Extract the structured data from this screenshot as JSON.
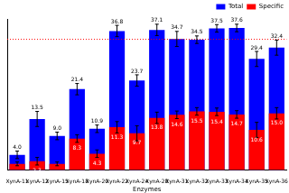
{
  "chart_data": {
    "type": "bar",
    "x_label": "Enzymes",
    "categories": [
      "XynA-11",
      "XynA-12",
      "XynA-15",
      "XynA-18",
      "XynA-20",
      "XynA-22",
      "XynA-24",
      "XynA-28",
      "XynA-31",
      "XynA-32",
      "XynA-33",
      "XynA-34",
      "XynA-35",
      "XynA-36"
    ],
    "series": [
      {
        "name": "Total",
        "color": "#0000ff",
        "values": [
          4.0,
          13.5,
          9.0,
          21.4,
          10.9,
          36.8,
          23.7,
          37.1,
          34.7,
          34.5,
          37.5,
          37.6,
          29.4,
          32.4
        ],
        "errors": [
          1.0,
          2.0,
          1.0,
          1.5,
          1.0,
          1.5,
          1.5,
          1.5,
          2.0,
          1.0,
          1.0,
          1.0,
          2.0,
          2.0
        ]
      },
      {
        "name": "Specific",
        "color": "#ff0000",
        "values": [
          1.6,
          2.3,
          1.6,
          8.3,
          4.3,
          11.3,
          9.7,
          13.8,
          14.6,
          15.5,
          15.4,
          14.7,
          10.6,
          15.0
        ],
        "errors": [
          0.5,
          1.0,
          0.5,
          1.0,
          1.0,
          1.5,
          2.0,
          1.5,
          1.0,
          1.0,
          1.0,
          1.0,
          2.0,
          1.5
        ]
      }
    ],
    "ylim": [
      0,
      40
    ],
    "grid": false,
    "legend": "top-right",
    "data_labels": true,
    "tick_labels": "x",
    "reference_line": {
      "value": 34.6,
      "color": "#ff0000",
      "line_style": "dotted"
    }
  }
}
